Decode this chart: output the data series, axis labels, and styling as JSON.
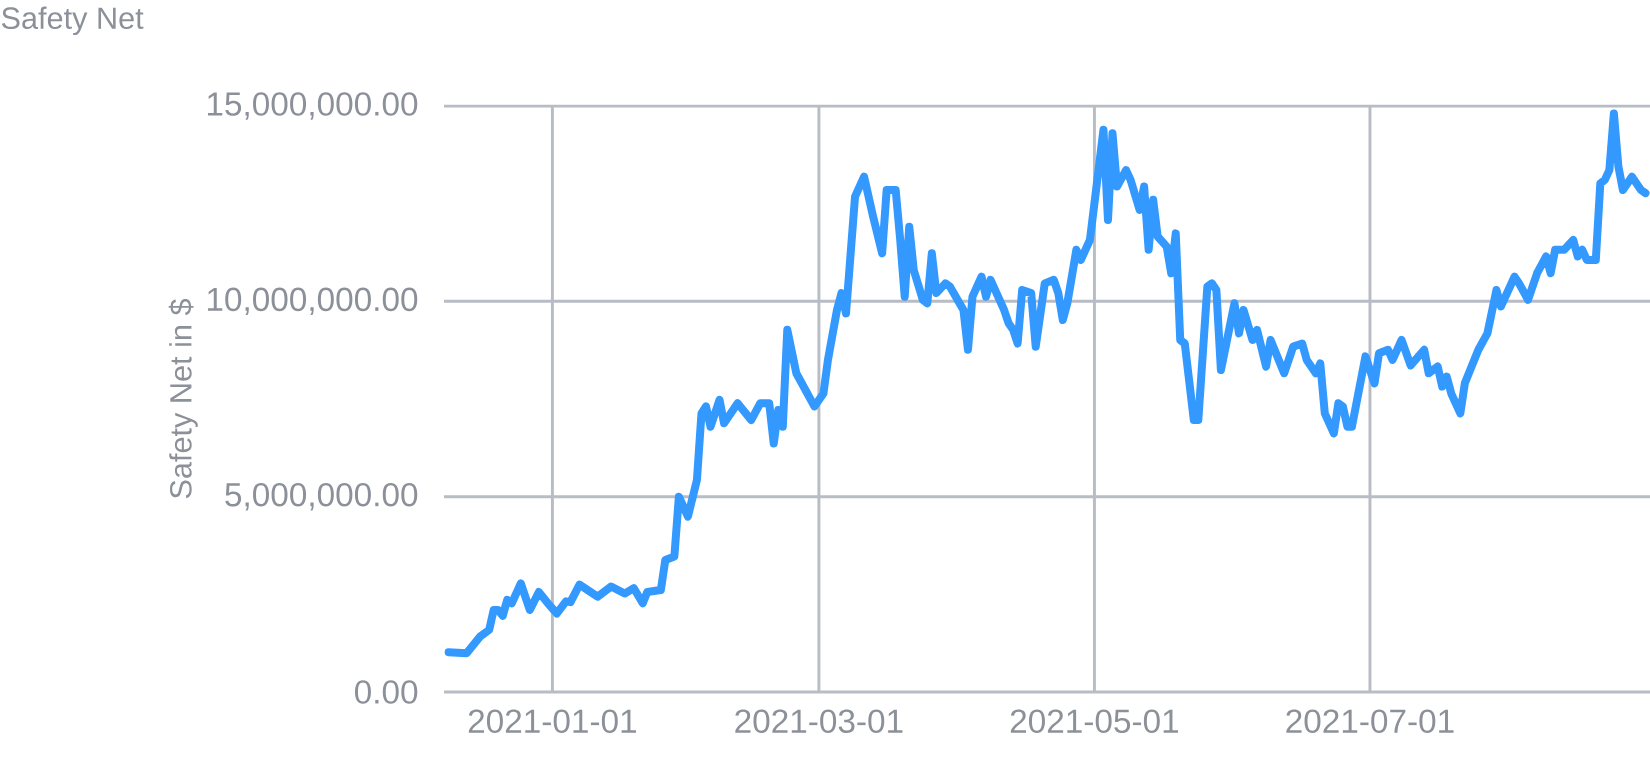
{
  "chart_data": {
    "type": "line",
    "title": "Safety Net",
    "ylabel": "Safety Net in $",
    "x": [
      "2020-12-09",
      "2020-12-13",
      "2020-12-16",
      "2020-12-18",
      "2020-12-19",
      "2020-12-20",
      "2020-12-21",
      "2020-12-22",
      "2020-12-23",
      "2020-12-25",
      "2020-12-27",
      "2020-12-29",
      "2020-12-31",
      "2021-01-02",
      "2021-01-04",
      "2021-01-05",
      "2021-01-07",
      "2021-01-11",
      "2021-01-14",
      "2021-01-17",
      "2021-01-19",
      "2021-01-21",
      "2021-01-22",
      "2021-01-25",
      "2021-01-26",
      "2021-01-28",
      "2021-01-29",
      "2021-01-31",
      "2021-02-02",
      "2021-02-03",
      "2021-02-04",
      "2021-02-05",
      "2021-02-07",
      "2021-02-08",
      "2021-02-11",
      "2021-02-14",
      "2021-02-16",
      "2021-02-18",
      "2021-02-19",
      "2021-02-20",
      "2021-02-21",
      "2021-02-22",
      "2021-02-24",
      "2021-02-28",
      "2021-03-02",
      "2021-03-03",
      "2021-03-05",
      "2021-03-06",
      "2021-03-07",
      "2021-03-09",
      "2021-03-11",
      "2021-03-13",
      "2021-03-15",
      "2021-03-16",
      "2021-03-18",
      "2021-03-19",
      "2021-03-20",
      "2021-03-21",
      "2021-03-22",
      "2021-03-24",
      "2021-03-25",
      "2021-03-26",
      "2021-03-27",
      "2021-03-29",
      "2021-03-30",
      "2021-04-02",
      "2021-04-03",
      "2021-04-04",
      "2021-04-06",
      "2021-04-07",
      "2021-04-08",
      "2021-04-11",
      "2021-04-12",
      "2021-04-13",
      "2021-04-14",
      "2021-04-15",
      "2021-04-17",
      "2021-04-18",
      "2021-04-20",
      "2021-04-22",
      "2021-04-23",
      "2021-04-24",
      "2021-04-25",
      "2021-04-27",
      "2021-04-28",
      "2021-04-30",
      "2021-05-01",
      "2021-05-03",
      "2021-05-04",
      "2021-05-05",
      "2021-05-06",
      "2021-05-08",
      "2021-05-09",
      "2021-05-11",
      "2021-05-12",
      "2021-05-13",
      "2021-05-14",
      "2021-05-15",
      "2021-05-17",
      "2021-05-18",
      "2021-05-19",
      "2021-05-20",
      "2021-05-21",
      "2021-05-23",
      "2021-05-24",
      "2021-05-26",
      "2021-05-27",
      "2021-05-28",
      "2021-05-29",
      "2021-06-01",
      "2021-06-02",
      "2021-06-03",
      "2021-06-05",
      "2021-06-06",
      "2021-06-08",
      "2021-06-09",
      "2021-06-12",
      "2021-06-14",
      "2021-06-16",
      "2021-06-17",
      "2021-06-19",
      "2021-06-20",
      "2021-06-21",
      "2021-06-23",
      "2021-06-24",
      "2021-06-25",
      "2021-06-26",
      "2021-06-27",
      "2021-06-30",
      "2021-07-02",
      "2021-07-03",
      "2021-07-05",
      "2021-07-06",
      "2021-07-08",
      "2021-07-10",
      "2021-07-13",
      "2021-07-14",
      "2021-07-16",
      "2021-07-17",
      "2021-07-18",
      "2021-07-19",
      "2021-07-21",
      "2021-07-22",
      "2021-07-25",
      "2021-07-27",
      "2021-07-29",
      "2021-07-30",
      "2021-08-02",
      "2021-08-03",
      "2021-08-05",
      "2021-08-07",
      "2021-08-09",
      "2021-08-10",
      "2021-08-11",
      "2021-08-13",
      "2021-08-15",
      "2021-08-16",
      "2021-08-17",
      "2021-08-18",
      "2021-08-20",
      "2021-08-21",
      "2021-08-22",
      "2021-08-23",
      "2021-08-24",
      "2021-08-25",
      "2021-08-26",
      "2021-08-28",
      "2021-08-30",
      "2021-08-31"
    ],
    "series": [
      {
        "color": "#3399ff",
        "values": [
          1020000,
          990000,
          1420000,
          1590000,
          2100000,
          2100000,
          1950000,
          2360000,
          2270000,
          2780000,
          2100000,
          2560000,
          2270000,
          2010000,
          2320000,
          2300000,
          2750000,
          2440000,
          2700000,
          2520000,
          2660000,
          2270000,
          2560000,
          2610000,
          3380000,
          3470000,
          5000000,
          4490000,
          5430000,
          7130000,
          7310000,
          6790000,
          7480000,
          6880000,
          7390000,
          6960000,
          7390000,
          7390000,
          6360000,
          7220000,
          6790000,
          9270000,
          8160000,
          7310000,
          7640000,
          8500000,
          9780000,
          10210000,
          9690000,
          12680000,
          13190000,
          12170000,
          11230000,
          12850000,
          12850000,
          11570000,
          10120000,
          11910000,
          10800000,
          10040000,
          9950000,
          11230000,
          10210000,
          10460000,
          10380000,
          9780000,
          8760000,
          10120000,
          10630000,
          10120000,
          10550000,
          9780000,
          9440000,
          9270000,
          8920000,
          10290000,
          10210000,
          8840000,
          10460000,
          10550000,
          10210000,
          9520000,
          9950000,
          11320000,
          11060000,
          11570000,
          12510000,
          14390000,
          12080000,
          14300000,
          12940000,
          13360000,
          13110000,
          12340000,
          12940000,
          11320000,
          12600000,
          11660000,
          11400000,
          10720000,
          11740000,
          9010000,
          8920000,
          6960000,
          6960000,
          10380000,
          10460000,
          10290000,
          8240000,
          9950000,
          9180000,
          9780000,
          9010000,
          9270000,
          8330000,
          9010000,
          8160000,
          8840000,
          8920000,
          8500000,
          8160000,
          8410000,
          7130000,
          6620000,
          7390000,
          7310000,
          6790000,
          6790000,
          8590000,
          7900000,
          8670000,
          8760000,
          8500000,
          9010000,
          8360000,
          8760000,
          8160000,
          8330000,
          7820000,
          8070000,
          7640000,
          7130000,
          7900000,
          8760000,
          9180000,
          10290000,
          9870000,
          10630000,
          10460000,
          10040000,
          10720000,
          11150000,
          10720000,
          11320000,
          11320000,
          11570000,
          11150000,
          11320000,
          11060000,
          11060000,
          13020000,
          13110000,
          13360000,
          14810000,
          13450000,
          12850000,
          13190000,
          12850000,
          12770000
        ]
      }
    ],
    "xlim": [
      "2020-12-08",
      "2021-09-01"
    ],
    "xticks": [
      "2021-01-01",
      "2021-03-01",
      "2021-05-01",
      "2021-07-01"
    ],
    "ylim": [
      0,
      15000000
    ],
    "yticks": [
      {
        "value": 0,
        "label": "0.00"
      },
      {
        "value": 5000000,
        "label": "5,000,000.00"
      },
      {
        "value": 10000000,
        "label": "10,000,000.00"
      },
      {
        "value": 15000000,
        "label": "15,000,000.00"
      }
    ],
    "grid": true
  }
}
